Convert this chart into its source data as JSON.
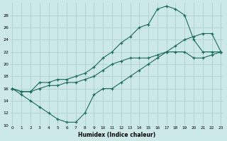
{
  "xlabel": "Humidex (Indice chaleur)",
  "bg_color": "#cce8e8",
  "line_color": "#1a6b5a",
  "grid_color": "#aacccc",
  "xlim": [
    0,
    23
  ],
  "ylim": [
    10,
    30
  ],
  "yticks": [
    10,
    12,
    14,
    16,
    18,
    20,
    22,
    24,
    26,
    28
  ],
  "xticks": [
    0,
    1,
    2,
    3,
    4,
    5,
    6,
    7,
    8,
    9,
    10,
    11,
    12,
    13,
    14,
    15,
    16,
    17,
    18,
    19,
    20,
    21,
    22,
    23
  ],
  "line1_x": [
    0,
    1,
    2,
    3,
    4,
    5,
    6,
    7,
    8,
    9,
    10,
    11,
    12,
    13,
    14,
    15,
    16,
    17,
    18,
    19,
    20,
    21,
    22,
    23
  ],
  "line1_y": [
    16,
    15,
    14,
    13,
    12,
    11,
    10.5,
    10.5,
    12,
    15,
    16,
    16,
    17,
    18,
    19,
    20,
    21,
    22,
    23,
    24,
    24.5,
    25,
    25,
    22
  ],
  "line2_x": [
    0,
    1,
    2,
    3,
    4,
    5,
    6,
    7,
    8,
    9,
    10,
    11,
    12,
    13,
    14,
    15,
    16,
    17,
    18,
    19,
    20,
    21,
    22,
    23
  ],
  "line2_y": [
    16,
    15.5,
    15.5,
    17,
    17,
    17.5,
    17.5,
    18,
    18.5,
    19.5,
    21,
    22,
    23.5,
    24.5,
    26,
    26.5,
    29,
    29.5,
    29,
    28,
    24,
    22,
    22,
    22
  ],
  "line3_x": [
    0,
    1,
    2,
    3,
    4,
    5,
    6,
    7,
    8,
    9,
    10,
    11,
    12,
    13,
    14,
    15,
    16,
    17,
    18,
    19,
    20,
    21,
    22,
    23
  ],
  "line3_y": [
    16,
    15.5,
    15.5,
    16,
    16.5,
    16.5,
    17,
    17,
    17.5,
    18,
    19,
    20,
    20.5,
    21,
    21,
    21,
    21.5,
    22,
    22,
    22,
    21,
    21,
    21.5,
    22
  ]
}
